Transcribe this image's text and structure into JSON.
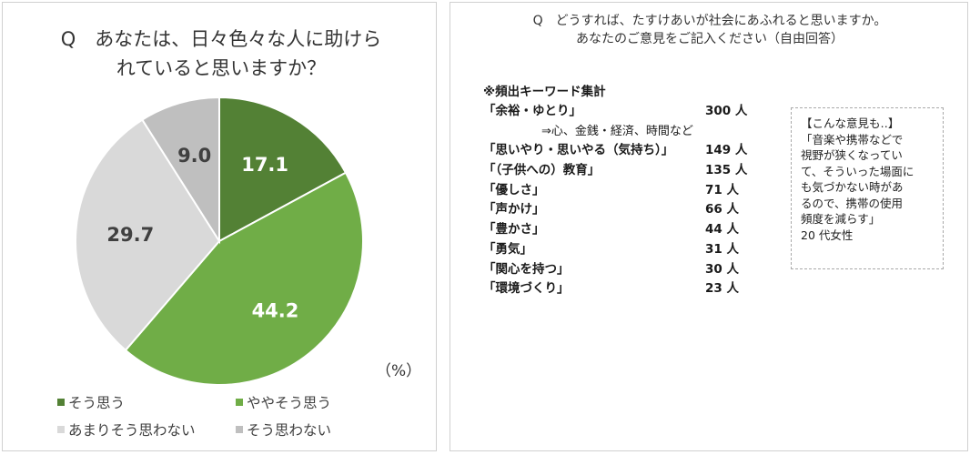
{
  "left": {
    "question": [
      "Q　あなたは、日々色々な人に助けら",
      "れていると思いますか？"
    ],
    "unit": "（%）"
  },
  "chart_data": {
    "type": "pie",
    "title": "Q　あなたは、日々色々な人に助けられていると思いますか？",
    "unit": "%",
    "labels": [
      "そう思う",
      "ややそう思う",
      "あまりそう思わない",
      "そう思わない"
    ],
    "values": [
      17.1,
      44.2,
      29.7,
      9.0
    ],
    "value_labels": [
      "17.1",
      "44.2",
      "29.7",
      "9.0"
    ],
    "colors": [
      "#538135",
      "#70AD47",
      "#D9D9D9",
      "#BFBFBF"
    ],
    "label_colors": [
      "#ffffff",
      "#ffffff",
      "#404040",
      "#404040"
    ],
    "start_angle_deg": 0,
    "direction": "clockwise",
    "legend_placement": "bottom"
  },
  "right": {
    "question": [
      "Q　どうすれば、たすけあいが社会にあふれると思いますか。",
      "あなたのご意見をご記入ください（自由回答）"
    ],
    "keywords_heading": "※頻出キーワード集計",
    "keywords": [
      {
        "name": "「余裕・ゆとり」",
        "count": "300 人",
        "note": "⇒心、金銭・経済、時間など"
      },
      {
        "name": "「思いやり・思いやる（気持ち）」",
        "count": "149 人"
      },
      {
        "name": "「（子供への）教育」",
        "count": "135 人"
      },
      {
        "name": "「優しさ」",
        "count": "71 人"
      },
      {
        "name": "「声かけ」",
        "count": "66 人"
      },
      {
        "name": "「豊かさ」",
        "count": "44 人"
      },
      {
        "name": "「勇気」",
        "count": "31 人"
      },
      {
        "name": "「関心を持つ」",
        "count": "30 人"
      },
      {
        "name": "「環境づくり」",
        "count": "23 人"
      }
    ],
    "opinion": {
      "heading": "【こんな意見も‥】",
      "lines": [
        "「音楽や携帯などで",
        "視野が狭くなってい",
        "て、そういった場面に",
        "も気づかない時があ",
        "るので、携帯の使用",
        "頻度を減らす」"
      ],
      "attribution": "20 代女性"
    }
  }
}
